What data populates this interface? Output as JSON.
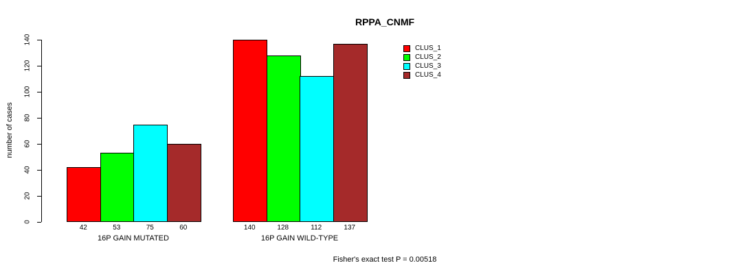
{
  "chart_data": {
    "type": "bar",
    "title": "RPPA_CNMF",
    "ylabel": "number of cases",
    "xlabel": "",
    "ylim": [
      0,
      140
    ],
    "yticks": [
      0,
      20,
      40,
      60,
      80,
      100,
      120,
      140
    ],
    "grid": false,
    "legend_position": "top-right",
    "categories": [
      "16P GAIN MUTATED",
      "16P GAIN WILD-TYPE"
    ],
    "series": [
      {
        "name": "CLUS_1",
        "color": "#ff0000",
        "values": [
          42,
          140
        ]
      },
      {
        "name": "CLUS_2",
        "color": "#00ff00",
        "values": [
          53,
          128
        ]
      },
      {
        "name": "CLUS_3",
        "color": "#00ffff",
        "values": [
          75,
          112
        ]
      },
      {
        "name": "CLUS_4",
        "color": "#a52a2a",
        "values": [
          60,
          137
        ]
      }
    ],
    "bar_value_labels": [
      [
        42,
        53,
        75,
        60
      ],
      [
        140,
        128,
        112,
        137
      ]
    ],
    "annotation": "Fisher's exact test P = 0.00518",
    "colors": {
      "background": "#ffffff",
      "axis": "#000000",
      "bar_border": "#000000",
      "text": "#000000"
    }
  }
}
